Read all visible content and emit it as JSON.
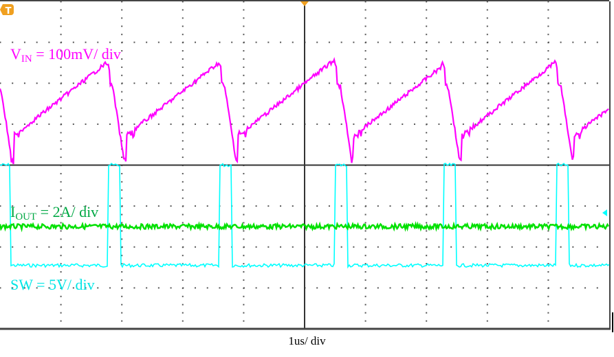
{
  "chart_data": {
    "type": "line",
    "title": "",
    "xlabel": "1us/ div",
    "ylabel": "",
    "grid": true,
    "grid_divisions": {
      "x": 10,
      "y": 8
    },
    "x_unit": "us",
    "x_range_us": [
      0,
      10
    ],
    "series": [
      {
        "name": "VIN",
        "label_main": "V",
        "label_sub": "IN",
        "label_rest": " = 100mV/ div",
        "color": "#ff00ff",
        "shape": "sawtooth ripple",
        "period_us": 1.84,
        "peaks_x_us": [
          1.75,
          3.59,
          5.49,
          7.26,
          9.11
        ],
        "peak_div_from_top": 1.5,
        "trough_div_from_top": 4.0
      },
      {
        "name": "IOUT",
        "label_main": "I",
        "label_sub": "OUT",
        "label_rest": " = 2A/ div",
        "color": "#00e000",
        "shape": "flat dc with noise",
        "level_div_from_top": 5.5
      },
      {
        "name": "SW",
        "label_main": "SW",
        "label_sub": "",
        "label_rest": " = 5V/ div",
        "color": "#00ffff",
        "shape": "pulse train",
        "period_us": 1.84,
        "high_div_from_top": 4.0,
        "low_div_from_top": 6.45,
        "pulse_windows_us": [
          [
            0,
            0.16
          ],
          [
            1.78,
            1.97
          ],
          [
            3.61,
            3.8
          ],
          [
            5.49,
            5.69
          ],
          [
            7.29,
            7.48
          ],
          [
            9.13,
            9.33
          ]
        ]
      }
    ],
    "markers": {
      "trigger_position": "T",
      "trigger_color": "#f0a020",
      "trigger_level_arrow_color": "#00ffff"
    }
  },
  "labels": {
    "timebase": "1us/ div",
    "trigger_glyph": "T"
  }
}
